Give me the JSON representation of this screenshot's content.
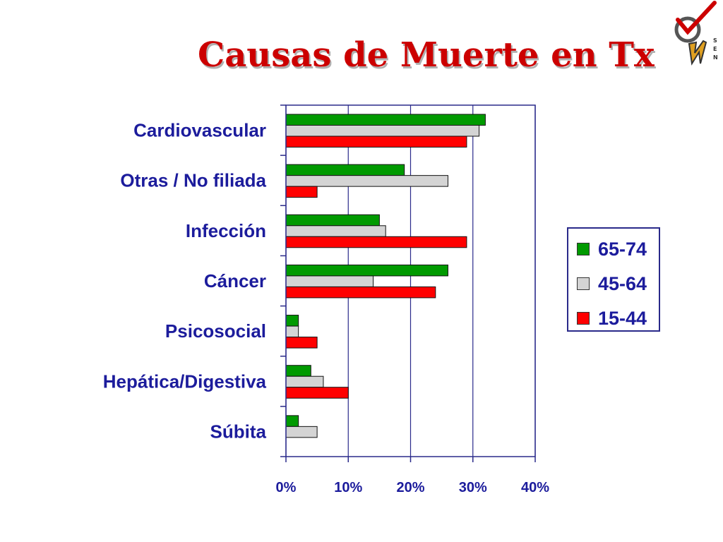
{
  "slide": {
    "title": "Causas de Muerte en Tx"
  },
  "logo": {
    "letters": [
      "S",
      "E",
      "N"
    ]
  },
  "chart_data": {
    "type": "bar",
    "orientation": "horizontal",
    "categories": [
      "Cardiovascular",
      "Otras / No filiada",
      "Infección",
      "Cáncer",
      "Psicosocial",
      "Hepática/Digestiva",
      "Súbita"
    ],
    "series": [
      {
        "name": "65-74",
        "color": "#009a00",
        "values": [
          32,
          19,
          15,
          26,
          2,
          4,
          2
        ]
      },
      {
        "name": "45-64",
        "color": "#d4d4d4",
        "values": [
          31,
          26,
          16,
          14,
          2,
          6,
          5
        ]
      },
      {
        "name": "15-44",
        "color": "#ff0000",
        "values": [
          29,
          5,
          29,
          24,
          5,
          10,
          0
        ]
      }
    ],
    "xlim": [
      0,
      40
    ],
    "xticks": [
      "0%",
      "10%",
      "20%",
      "30%",
      "40%"
    ],
    "value_unit": "%",
    "grid": true,
    "legend_position": "right"
  }
}
